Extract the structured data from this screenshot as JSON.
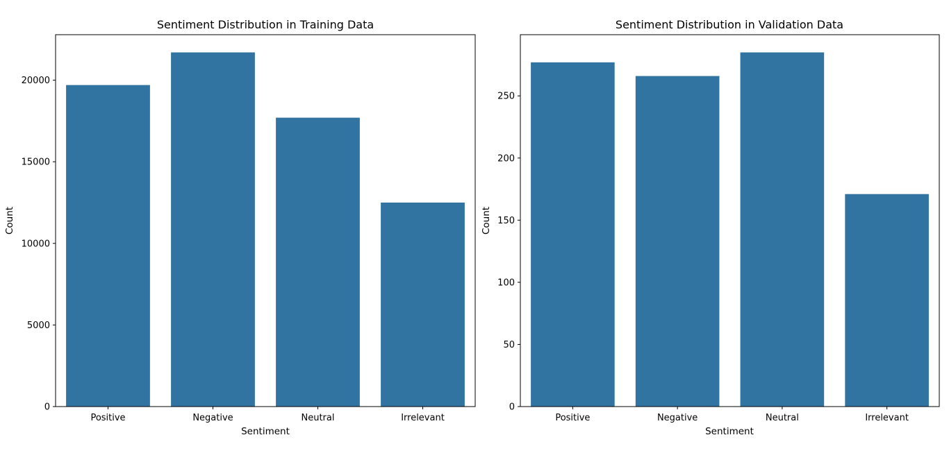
{
  "figure": {
    "background": "#ffffff",
    "bar_color": "#3274a1"
  },
  "chart_data": [
    {
      "type": "bar",
      "title": "Sentiment Distribution in Training Data",
      "xlabel": "Sentiment",
      "ylabel": "Count",
      "categories": [
        "Positive",
        "Negative",
        "Neutral",
        "Irrelevant"
      ],
      "values": [
        19700,
        21700,
        17700,
        12500
      ],
      "ylim": [
        0,
        22785
      ],
      "yticks": [
        0,
        5000,
        10000,
        15000,
        20000
      ],
      "grid": false,
      "legend": "none"
    },
    {
      "type": "bar",
      "title": "Sentiment Distribution in Validation Data",
      "xlabel": "Sentiment",
      "ylabel": "Count",
      "categories": [
        "Positive",
        "Negative",
        "Neutral",
        "Irrelevant"
      ],
      "values": [
        277,
        266,
        285,
        171
      ],
      "ylim": [
        0,
        299.25
      ],
      "yticks": [
        0,
        50,
        100,
        150,
        200,
        250
      ],
      "grid": false,
      "legend": "none"
    }
  ]
}
